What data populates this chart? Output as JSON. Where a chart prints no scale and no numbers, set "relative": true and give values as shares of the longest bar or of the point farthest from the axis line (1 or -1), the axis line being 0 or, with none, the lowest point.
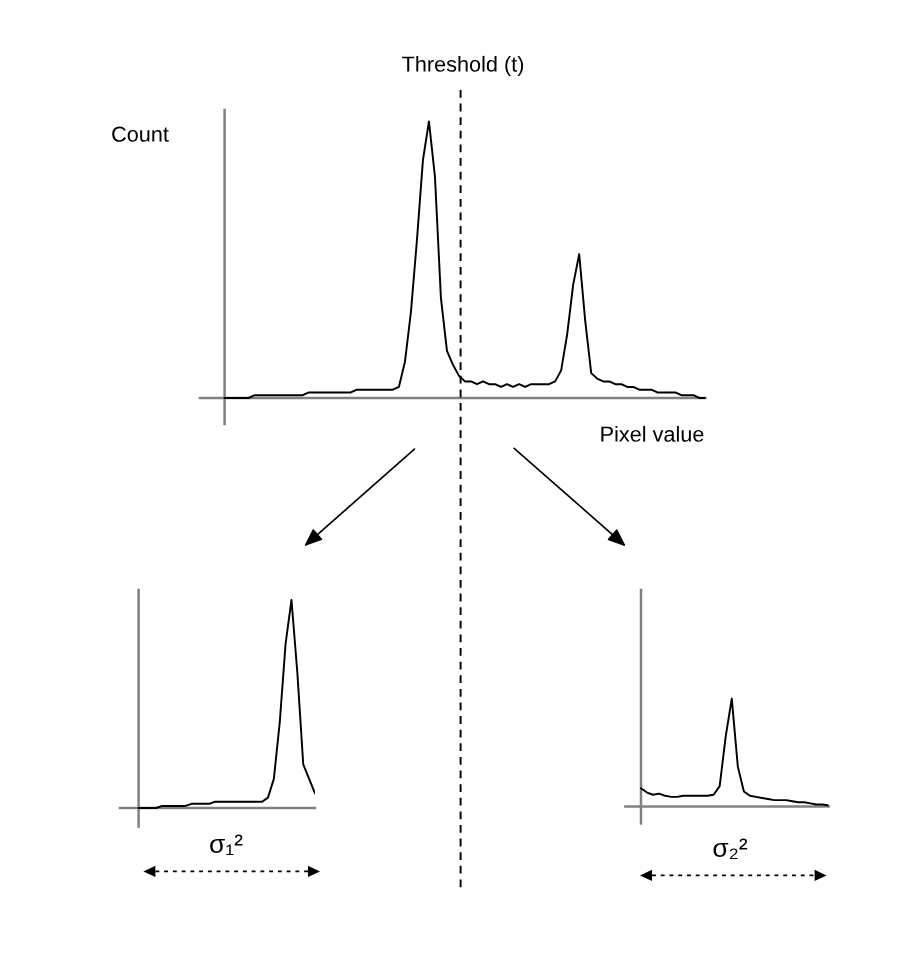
{
  "chart_data": [
    {
      "type": "line",
      "relative": true,
      "color": "#000000",
      "ylabel": "Count",
      "xlabel": "Pixel value",
      "categories": [
        null,
        null,
        null,
        null,
        null,
        null,
        null,
        null,
        null,
        null,
        null,
        null,
        null,
        null,
        null,
        null,
        null,
        null,
        null,
        null,
        null,
        null,
        null,
        null,
        null,
        null,
        null,
        null,
        null,
        null,
        null,
        null,
        null,
        null,
        null,
        null,
        null,
        null,
        null,
        null,
        null,
        null,
        null,
        null,
        null,
        null,
        null,
        null,
        null,
        null,
        null,
        null,
        null,
        null,
        null,
        null,
        null,
        null,
        null,
        null,
        null,
        null,
        null,
        null,
        null,
        null,
        null,
        null,
        null,
        null,
        null,
        null,
        null,
        null,
        null,
        null,
        null,
        null,
        null,
        null,
        null
      ],
      "values": [
        0,
        0,
        0,
        0,
        0,
        0.01,
        0.01,
        0.01,
        0.01,
        0.01,
        0.01,
        0.01,
        0.01,
        0.01,
        0.02,
        0.02,
        0.02,
        0.02,
        0.02,
        0.02,
        0.02,
        0.02,
        0.03,
        0.03,
        0.03,
        0.03,
        0.03,
        0.03,
        0.03,
        0.04,
        0.13,
        0.31,
        0.57,
        0.86,
        1.0,
        0.8,
        0.36,
        0.17,
        0.12,
        0.08,
        0.06,
        0.06,
        0.05,
        0.06,
        0.05,
        0.05,
        0.04,
        0.05,
        0.04,
        0.05,
        0.04,
        0.05,
        0.05,
        0.05,
        0.05,
        0.06,
        0.1,
        0.23,
        0.41,
        0.52,
        0.28,
        0.09,
        0.07,
        0.06,
        0.06,
        0.05,
        0.05,
        0.04,
        0.04,
        0.03,
        0.03,
        0.03,
        0.02,
        0.02,
        0.02,
        0.02,
        0.01,
        0.01,
        0.01,
        0,
        0
      ],
      "annotations": [
        "Threshold (t)"
      ]
    },
    {
      "type": "line",
      "relative": true,
      "color": "#000000",
      "xlabel": "σ₁²",
      "categories": [
        null,
        null,
        null,
        null,
        null,
        null,
        null,
        null,
        null,
        null,
        null,
        null,
        null,
        null,
        null,
        null,
        null,
        null,
        null,
        null,
        null,
        null,
        null,
        null,
        null,
        null,
        null,
        null,
        null,
        null,
        null
      ],
      "values": [
        0,
        0,
        0,
        0,
        0.01,
        0.01,
        0.01,
        0.01,
        0.01,
        0.02,
        0.02,
        0.02,
        0.02,
        0.03,
        0.03,
        0.03,
        0.03,
        0.03,
        0.03,
        0.03,
        0.03,
        0.03,
        0.05,
        0.14,
        0.41,
        0.79,
        1.0,
        0.65,
        0.21,
        0.14,
        0.07
      ]
    },
    {
      "type": "line",
      "relative": true,
      "color": "#000000",
      "xlabel": "σ₂²",
      "categories": [
        null,
        null,
        null,
        null,
        null,
        null,
        null,
        null,
        null,
        null,
        null,
        null,
        null,
        null,
        null,
        null,
        null,
        null,
        null,
        null,
        null,
        null,
        null,
        null,
        null,
        null,
        null,
        null,
        null,
        null,
        null,
        null
      ],
      "values": [
        0.17,
        0.13,
        0.11,
        0.12,
        0.1,
        0.09,
        0.09,
        0.1,
        0.1,
        0.1,
        0.1,
        0.1,
        0.11,
        0.19,
        0.65,
        1.0,
        0.37,
        0.14,
        0.1,
        0.09,
        0.08,
        0.07,
        0.06,
        0.06,
        0.06,
        0.05,
        0.04,
        0.04,
        0.03,
        0.02,
        0.02,
        0.01
      ]
    }
  ]
}
